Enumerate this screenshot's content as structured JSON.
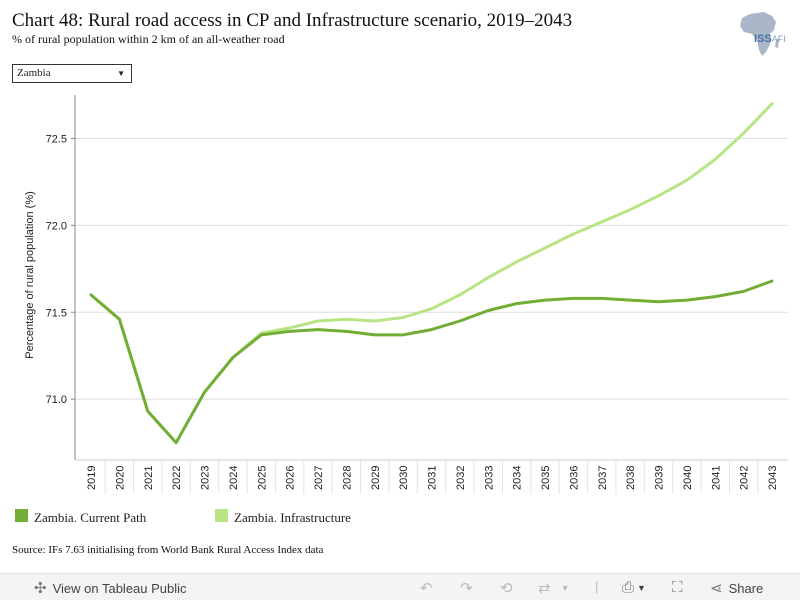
{
  "header": {
    "title": "Chart 48: Rural road access in CP and Infrastructure scenario, 2019–2043",
    "subtitle": "% of rural population within 2 km of an all-weather road",
    "logo_text": "ISS",
    "logo_suffix": "AFI"
  },
  "filter": {
    "selected": "Zambia"
  },
  "chart_data": {
    "type": "line",
    "title": "Chart 48: Rural road access in CP and Infrastructure scenario, 2019–2043",
    "ylabel": "Percentage of rural population (%)",
    "xlabel": "",
    "x": [
      "2019",
      "2020",
      "2021",
      "2022",
      "2023",
      "2024",
      "2025",
      "2026",
      "2027",
      "2028",
      "2029",
      "2030",
      "2031",
      "2032",
      "2033",
      "2034",
      "2035",
      "2036",
      "2037",
      "2038",
      "2039",
      "2040",
      "2041",
      "2042",
      "2043"
    ],
    "yticks": [
      "71.0",
      "71.5",
      "72.0",
      "72.5"
    ],
    "ylim": [
      70.65,
      72.75
    ],
    "grid": true,
    "legend": "bottom-left",
    "series": [
      {
        "name": "Zambia. Current Path",
        "color": "#72ad35",
        "values": [
          71.6,
          71.46,
          70.93,
          70.75,
          71.04,
          71.24,
          71.37,
          71.39,
          71.4,
          71.39,
          71.37,
          71.37,
          71.4,
          71.45,
          71.51,
          71.55,
          71.57,
          71.58,
          71.58,
          71.57,
          71.56,
          71.57,
          71.59,
          71.62,
          71.68
        ]
      },
      {
        "name": "Zambia. Infrastructure",
        "color": "#b9e486",
        "values": [
          71.6,
          71.46,
          70.93,
          70.75,
          71.04,
          71.24,
          71.38,
          71.41,
          71.45,
          71.46,
          71.45,
          71.47,
          71.52,
          71.6,
          71.7,
          71.79,
          71.87,
          71.95,
          72.02,
          72.09,
          72.17,
          72.26,
          72.38,
          72.53,
          72.7
        ]
      }
    ]
  },
  "source": "Source: IFs 7.63 initialising from World Bank Rural Access Index data",
  "toolbar": {
    "view_label": "View on Tableau Public",
    "share_label": "Share"
  }
}
